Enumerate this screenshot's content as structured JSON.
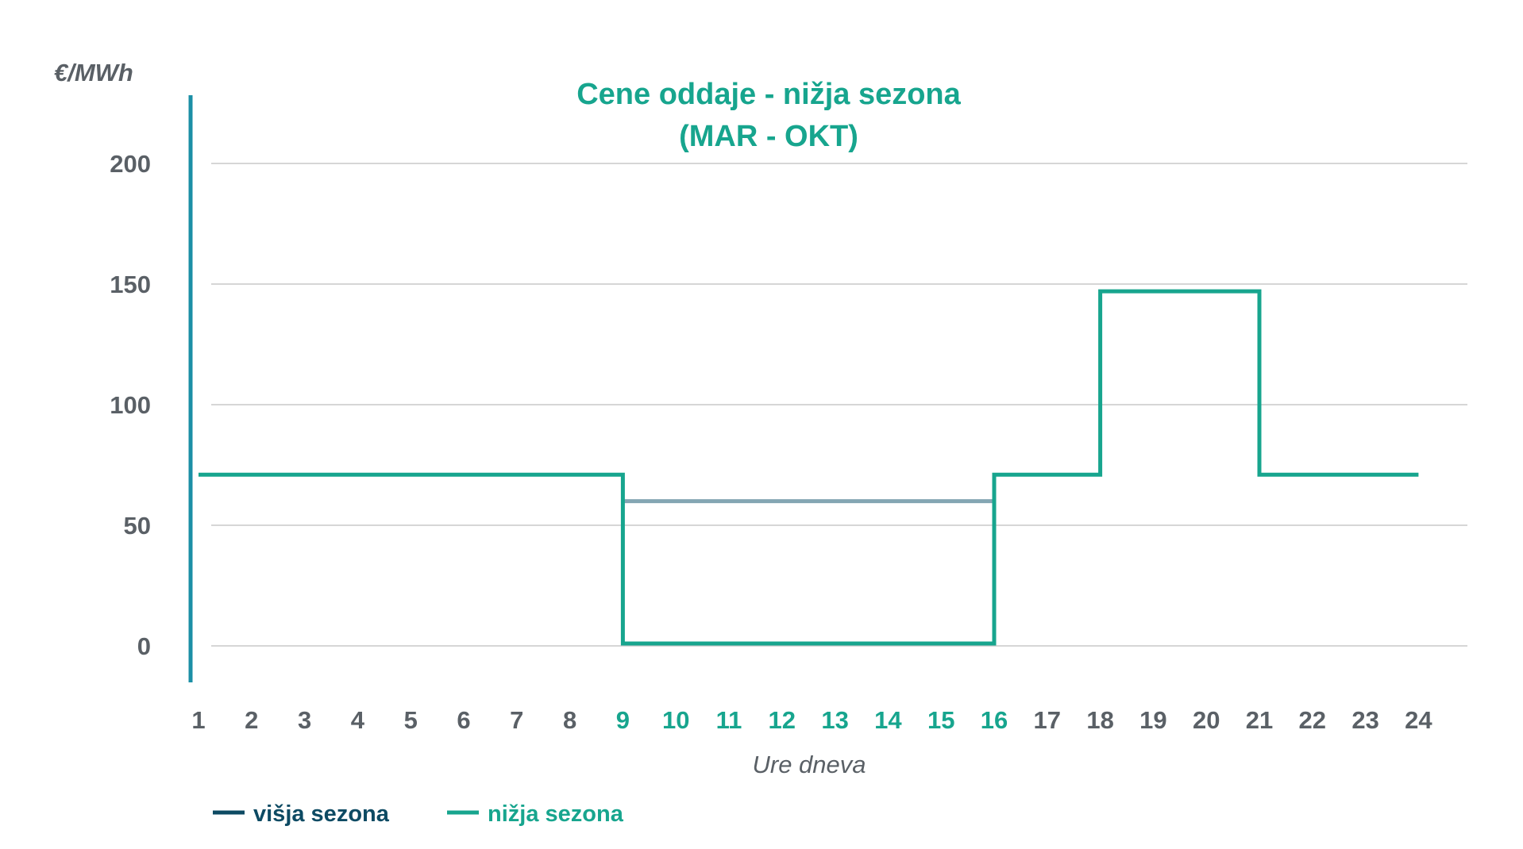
{
  "chart_data": {
    "type": "line",
    "step": true,
    "title_line1": "Cene oddaje - nižja sezona",
    "title_line2": "(MAR - OKT)",
    "ylabel": "€/MWh",
    "xlabel": "Ure dneva",
    "ylim": [
      -15,
      235
    ],
    "yticks": [
      0,
      50,
      100,
      150,
      200
    ],
    "grid": true,
    "x": [
      1,
      2,
      3,
      4,
      5,
      6,
      7,
      8,
      9,
      10,
      11,
      12,
      13,
      14,
      15,
      16,
      17,
      18,
      19,
      20,
      21,
      22,
      23,
      24
    ],
    "highlight_hours": [
      9,
      10,
      11,
      12,
      13,
      14,
      15,
      16
    ],
    "series": [
      {
        "name": "višja sezona",
        "color": "#0d4a63",
        "segment": {
          "x_start": 9,
          "x_end": 16,
          "y": 60,
          "color": "#84a6b3"
        }
      },
      {
        "name": "nižja sezona",
        "color": "#17a58e",
        "points": [
          [
            1,
            71
          ],
          [
            9,
            71
          ],
          [
            9,
            1
          ],
          [
            16,
            1
          ],
          [
            16,
            71
          ],
          [
            18,
            71
          ],
          [
            18,
            147
          ],
          [
            21,
            147
          ],
          [
            21,
            71
          ],
          [
            24,
            71
          ]
        ]
      }
    ],
    "legend_position": "bottom-left",
    "colors": {
      "axis_start": "#1b8fa6",
      "axis_end": "#0c3d52",
      "grid": "#c9c9c9",
      "tick_text": "#5a6066",
      "tick_highlight": "#17a58e"
    }
  }
}
